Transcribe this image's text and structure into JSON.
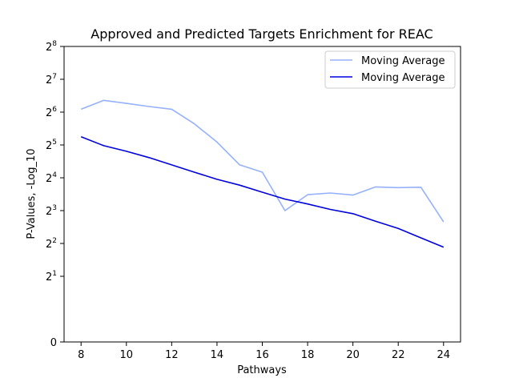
{
  "chart_data": {
    "type": "line",
    "title": "Approved and Predicted Targets Enrichment for REAC",
    "xlabel": "Pathways",
    "ylabel": "P-Values, -Log_10",
    "xlim": [
      7.25,
      24.75
    ],
    "x_ticks": [
      8,
      10,
      12,
      14,
      16,
      18,
      20,
      22,
      24
    ],
    "y_scale": "symlog base 2",
    "y_ticks": [
      {
        "value": 0,
        "label": "0"
      },
      {
        "value": 2,
        "base": "2",
        "exp": "1"
      },
      {
        "value": 4,
        "base": "2",
        "exp": "2"
      },
      {
        "value": 8,
        "base": "2",
        "exp": "3"
      },
      {
        "value": 16,
        "base": "2",
        "exp": "4"
      },
      {
        "value": 32,
        "base": "2",
        "exp": "5"
      },
      {
        "value": 64,
        "base": "2",
        "exp": "6"
      },
      {
        "value": 128,
        "base": "2",
        "exp": "7"
      },
      {
        "value": 256,
        "base": "2",
        "exp": "8"
      }
    ],
    "legend_position": "top-right",
    "grid": false,
    "x": [
      8,
      9,
      10,
      11,
      12,
      13,
      14,
      15,
      16,
      17,
      18,
      19,
      20,
      21,
      22,
      23,
      24
    ],
    "series": [
      {
        "name": "Moving Average",
        "color": "#95b1fe",
        "values": [
          68,
          82,
          77,
          72,
          68,
          50,
          34,
          21,
          18,
          8,
          11.2,
          11.6,
          11.1,
          13.2,
          13.0,
          13.1,
          6.3
        ]
      },
      {
        "name": "Moving Average",
        "color": "#0000e0",
        "values": [
          38,
          31.5,
          28.0,
          24.5,
          21.0,
          18.0,
          15.5,
          13.7,
          11.8,
          10.2,
          9.2,
          8.2,
          7.5,
          6.4,
          5.5,
          4.5,
          3.7
        ]
      }
    ]
  }
}
